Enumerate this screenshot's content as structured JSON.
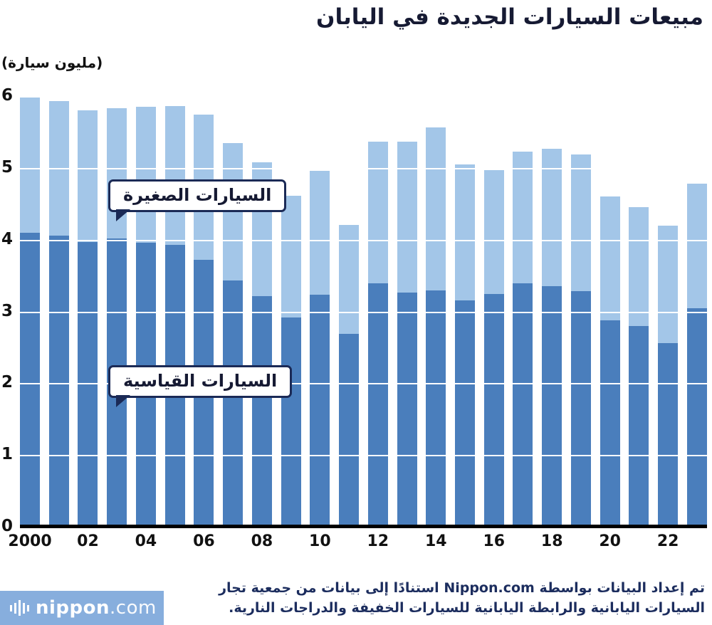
{
  "title": "مبيعات السيارات الجديدة في اليابان",
  "y_axis_unit": "(مليون سيارة)",
  "callouts": {
    "small_cars": "السيارات الصغيرة",
    "standard_cars": "السيارات القياسية"
  },
  "footer": {
    "line1": "تم إعداد البيانات بواسطة Nippon.com استنادًا إلى بيانات من جمعية تجار",
    "line2": "السيارات اليابانية والرابطة اليابانية للسيارات الخفيفة والدراجات النارية."
  },
  "logo": {
    "name": "nippon",
    "suffix": ".com"
  },
  "colors": {
    "standard_bar": "#4a7ebc",
    "small_bar": "#a3c6e8",
    "navy": "#1b2a56"
  },
  "chart_data": {
    "type": "bar",
    "stacked": true,
    "title": "مبيعات السيارات الجديدة في اليابان",
    "ylabel": "(مليون سيارة)",
    "ylim": [
      0,
      6
    ],
    "yticks": [
      0,
      1,
      2,
      3,
      4,
      5,
      6
    ],
    "x": [
      2000,
      2001,
      2002,
      2003,
      2004,
      2005,
      2006,
      2007,
      2008,
      2009,
      2010,
      2011,
      2012,
      2013,
      2014,
      2015,
      2016,
      2017,
      2018,
      2019,
      2020,
      2021,
      2022,
      2023
    ],
    "tick_labels": [
      "2000",
      "02",
      "04",
      "06",
      "08",
      "10",
      "12",
      "14",
      "16",
      "18",
      "20",
      "22"
    ],
    "tick_every": 2,
    "series": [
      {
        "name": "السيارات القياسية",
        "color": "#4a7ebc",
        "values": [
          4.1,
          4.06,
          3.97,
          4.02,
          3.96,
          3.93,
          3.72,
          3.43,
          3.21,
          2.92,
          3.23,
          2.69,
          3.39,
          3.26,
          3.29,
          3.15,
          3.24,
          3.39,
          3.35,
          3.28,
          2.88,
          2.8,
          2.56,
          3.04
        ]
      },
      {
        "name": "السيارات الصغيرة",
        "color": "#a3c6e8",
        "values": [
          1.88,
          1.87,
          1.83,
          1.81,
          1.89,
          1.93,
          2.02,
          1.92,
          1.87,
          1.69,
          1.73,
          1.52,
          1.98,
          2.11,
          2.27,
          1.9,
          1.73,
          1.84,
          1.92,
          1.91,
          1.72,
          1.65,
          1.64,
          1.74
        ]
      }
    ]
  }
}
